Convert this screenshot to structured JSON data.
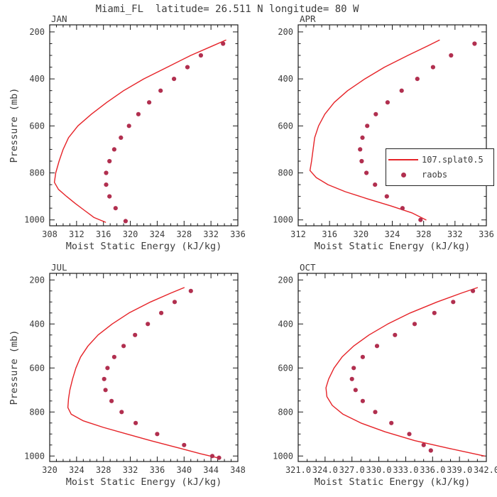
{
  "title": "Miami_FL  latitude= 26.511 N longitude= 80 W",
  "colors": {
    "model_line": "#e62328",
    "raobs_dot": "#b12f4f",
    "axis": "#1a1a1a",
    "text": "#3c3c3c"
  },
  "legend": {
    "items": [
      {
        "label": "107.splat0.5",
        "marker": "line"
      },
      {
        "label": "raobs",
        "marker": "dot"
      }
    ]
  },
  "chart_data": {
    "type": "line",
    "title": "Miami_FL  latitude= 26.511 N longitude= 80 W",
    "xlabel": "Moist Static Energy (kJ/kg)",
    "ylabel": "Pressure (mb)",
    "y_axis_inverted": true,
    "ylim": [
      170,
      1025
    ],
    "yticks": [
      200,
      400,
      600,
      800,
      1000
    ],
    "ytick_labels": [
      "200",
      "400",
      "600",
      "800",
      "1000"
    ],
    "y_minor_step": 50,
    "x_minor_step": 1,
    "series_names": [
      "107.splat0.5",
      "raobs"
    ],
    "panels": [
      {
        "label": "JAN",
        "show_ylabel": true,
        "xlim": [
          308,
          336
        ],
        "xticks": [
          308,
          312,
          316,
          320,
          324,
          328,
          332,
          336
        ],
        "xtick_labels": [
          "308",
          "312",
          "316",
          "320",
          "324",
          "328",
          "332",
          "336"
        ],
        "model": {
          "pressure_mb": [
            235,
            260,
            300,
            350,
            400,
            450,
            500,
            550,
            600,
            650,
            700,
            750,
            800,
            840,
            870,
            900,
            930,
            960,
            990,
            1010
          ],
          "mse_kj_kg": [
            334.2,
            332.2,
            329.0,
            325.5,
            322.0,
            319.0,
            316.5,
            314.2,
            312.2,
            310.8,
            310.0,
            309.4,
            308.9,
            308.7,
            309.3,
            310.5,
            311.8,
            313.2,
            314.6,
            316.3
          ]
        },
        "raobs": {
          "pressure_mb": [
            250,
            300,
            350,
            400,
            450,
            500,
            550,
            600,
            650,
            700,
            750,
            800,
            850,
            900,
            950,
            1005
          ],
          "mse_kj_kg": [
            333.8,
            330.5,
            328.5,
            326.5,
            324.5,
            322.8,
            321.2,
            319.8,
            318.6,
            317.6,
            316.9,
            316.4,
            316.4,
            316.9,
            317.8,
            319.3
          ]
        }
      },
      {
        "label": "APR",
        "show_ylabel": false,
        "xlim": [
          312,
          336
        ],
        "xticks": [
          312,
          316,
          320,
          324,
          328,
          332,
          336
        ],
        "xtick_labels": [
          "312",
          "316",
          "320",
          "324",
          "328",
          "332",
          "336"
        ],
        "model": {
          "pressure_mb": [
            235,
            260,
            300,
            350,
            400,
            450,
            500,
            550,
            600,
            650,
            700,
            750,
            790,
            820,
            850,
            880,
            910,
            940,
            970,
            1000
          ],
          "mse_kj_kg": [
            330.0,
            328.5,
            326.0,
            323.0,
            320.5,
            318.3,
            316.6,
            315.4,
            314.6,
            314.1,
            313.9,
            313.7,
            313.5,
            314.3,
            315.8,
            318.0,
            320.8,
            323.8,
            326.5,
            328.3
          ]
        },
        "raobs": {
          "pressure_mb": [
            250,
            300,
            350,
            400,
            450,
            500,
            550,
            600,
            650,
            700,
            750,
            800,
            850,
            900,
            950,
            1000
          ],
          "mse_kj_kg": [
            334.5,
            331.5,
            329.2,
            327.2,
            325.2,
            323.4,
            321.9,
            320.8,
            320.2,
            319.9,
            320.1,
            320.7,
            321.8,
            323.3,
            325.3,
            327.6
          ]
        }
      },
      {
        "label": "JUL",
        "show_ylabel": true,
        "xlim": [
          320,
          348
        ],
        "xticks": [
          320,
          324,
          328,
          332,
          336,
          340,
          344,
          348
        ],
        "xtick_labels": [
          "320",
          "324",
          "328",
          "332",
          "336",
          "340",
          "344",
          "348"
        ],
        "model": {
          "pressure_mb": [
            235,
            260,
            300,
            350,
            400,
            450,
            500,
            550,
            600,
            650,
            700,
            740,
            780,
            810,
            840,
            870,
            900,
            930,
            960,
            990,
            1010
          ],
          "mse_kj_kg": [
            340.0,
            338.0,
            335.0,
            331.8,
            329.3,
            327.2,
            325.7,
            324.6,
            323.9,
            323.4,
            323.0,
            322.8,
            322.7,
            323.2,
            325.0,
            328.0,
            331.5,
            335.0,
            338.8,
            342.5,
            345.3
          ]
        },
        "raobs": {
          "pressure_mb": [
            250,
            300,
            350,
            400,
            450,
            500,
            550,
            600,
            650,
            700,
            750,
            800,
            850,
            900,
            950,
            1000,
            1008
          ],
          "mse_kj_kg": [
            341.0,
            338.6,
            336.6,
            334.6,
            332.7,
            331.0,
            329.6,
            328.6,
            328.1,
            328.3,
            329.2,
            330.7,
            332.8,
            336.0,
            340.0,
            344.2,
            345.2
          ]
        }
      },
      {
        "label": "OCT",
        "show_ylabel": false,
        "xlim": [
          321,
          342
        ],
        "xticks": [
          321,
          324,
          327,
          330,
          333,
          336,
          339,
          342
        ],
        "xtick_labels": [
          "321.0",
          "324.0",
          "327.0",
          "330.0",
          "333.0",
          "336.0",
          "339.0",
          "342.0"
        ],
        "model": {
          "pressure_mb": [
            235,
            260,
            300,
            350,
            400,
            450,
            500,
            550,
            600,
            650,
            690,
            730,
            770,
            810,
            850,
            890,
            930,
            965,
            1000
          ],
          "mse_kj_kg": [
            341.0,
            339.2,
            336.5,
            333.5,
            331.0,
            328.9,
            327.2,
            325.9,
            325.0,
            324.4,
            324.1,
            324.2,
            324.8,
            326.0,
            328.0,
            330.7,
            334.0,
            337.8,
            341.8
          ]
        },
        "raobs": {
          "pressure_mb": [
            250,
            300,
            350,
            400,
            450,
            500,
            550,
            600,
            650,
            700,
            750,
            800,
            850,
            900,
            950,
            975
          ],
          "mse_kj_kg": [
            340.5,
            338.3,
            336.2,
            334.0,
            331.8,
            329.8,
            328.2,
            327.2,
            327.0,
            327.4,
            328.2,
            329.6,
            331.4,
            333.4,
            335.0,
            335.8
          ]
        }
      }
    ]
  }
}
